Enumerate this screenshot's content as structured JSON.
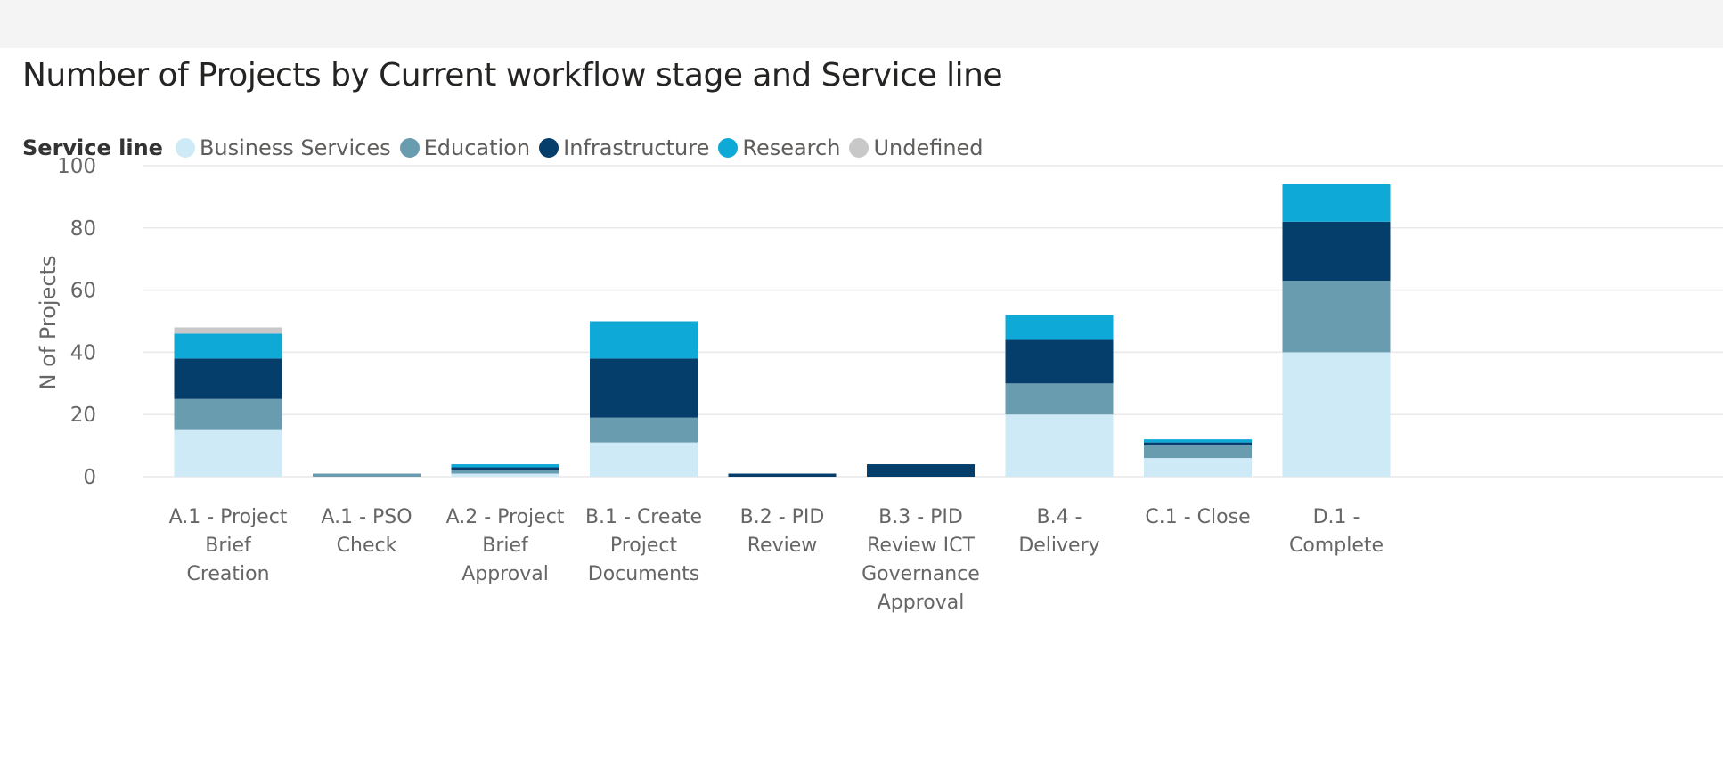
{
  "chart_data": {
    "type": "bar",
    "stacked": true,
    "title": "Number of Projects by Current workflow stage and Service line",
    "legend_title": "Service line",
    "legend_position": "top-left",
    "xlabel": "",
    "ylabel": "N of Projects",
    "ylim": [
      0,
      100
    ],
    "yticks": [
      0,
      20,
      40,
      60,
      80,
      100
    ],
    "grid": true,
    "categories": [
      [
        "A.1 - Project",
        "Brief",
        "Creation"
      ],
      [
        "A.1 - PSO",
        "Check"
      ],
      [
        "A.2 - Project",
        "Brief",
        "Approval"
      ],
      [
        "B.1 - Create",
        "Project",
        "Documents"
      ],
      [
        "B.2 - PID",
        "Review"
      ],
      [
        "B.3 - PID",
        "Review ICT",
        "Governance",
        "Approval"
      ],
      [
        "B.4 -",
        "Delivery"
      ],
      [
        "C.1 - Close"
      ],
      [
        "D.1 -",
        "Complete"
      ]
    ],
    "series": [
      {
        "name": "Business Services",
        "color": "#cdeaf6",
        "values": [
          15,
          0,
          1,
          11,
          0,
          0,
          20,
          6,
          40
        ]
      },
      {
        "name": "Education",
        "color": "#6a9cb0",
        "values": [
          10,
          1,
          1,
          8,
          0,
          0,
          10,
          4,
          23
        ]
      },
      {
        "name": "Infrastructure",
        "color": "#053d6b",
        "values": [
          13,
          0,
          1,
          19,
          1,
          4,
          14,
          1,
          19
        ]
      },
      {
        "name": "Research",
        "color": "#0ea9d6",
        "values": [
          8,
          0,
          1,
          12,
          0,
          0,
          8,
          1,
          12
        ]
      },
      {
        "name": "Undefined",
        "color": "#c8c8c8",
        "values": [
          2,
          0,
          0,
          0,
          0,
          0,
          0,
          0,
          0
        ]
      }
    ]
  }
}
